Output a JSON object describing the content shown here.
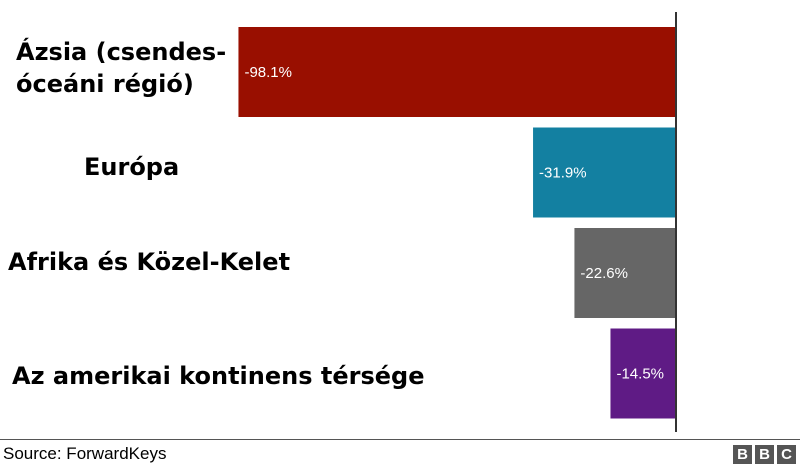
{
  "chart_data": {
    "type": "bar",
    "orientation": "horizontal",
    "categories": [
      [
        "Ázsia (csendes-",
        "óceáni régió)"
      ],
      [
        "Európa"
      ],
      [
        "Afrika és Közel-Kelet"
      ],
      [
        "Az amerikai kontinens térsége"
      ]
    ],
    "values": [
      -98.1,
      -31.9,
      -22.6,
      -14.5
    ],
    "value_labels": [
      "-98.1%",
      "-31.9%",
      "-22.6%",
      "-14.5%"
    ],
    "colors": [
      "#990f00",
      "#1380a1",
      "#666666",
      "#5f1b85"
    ],
    "xlim": [
      -100,
      0
    ],
    "grid": false,
    "legend": "none"
  },
  "footer": {
    "source": "Source: ForwardKeys",
    "logo_letters": [
      "B",
      "B",
      "C"
    ]
  }
}
